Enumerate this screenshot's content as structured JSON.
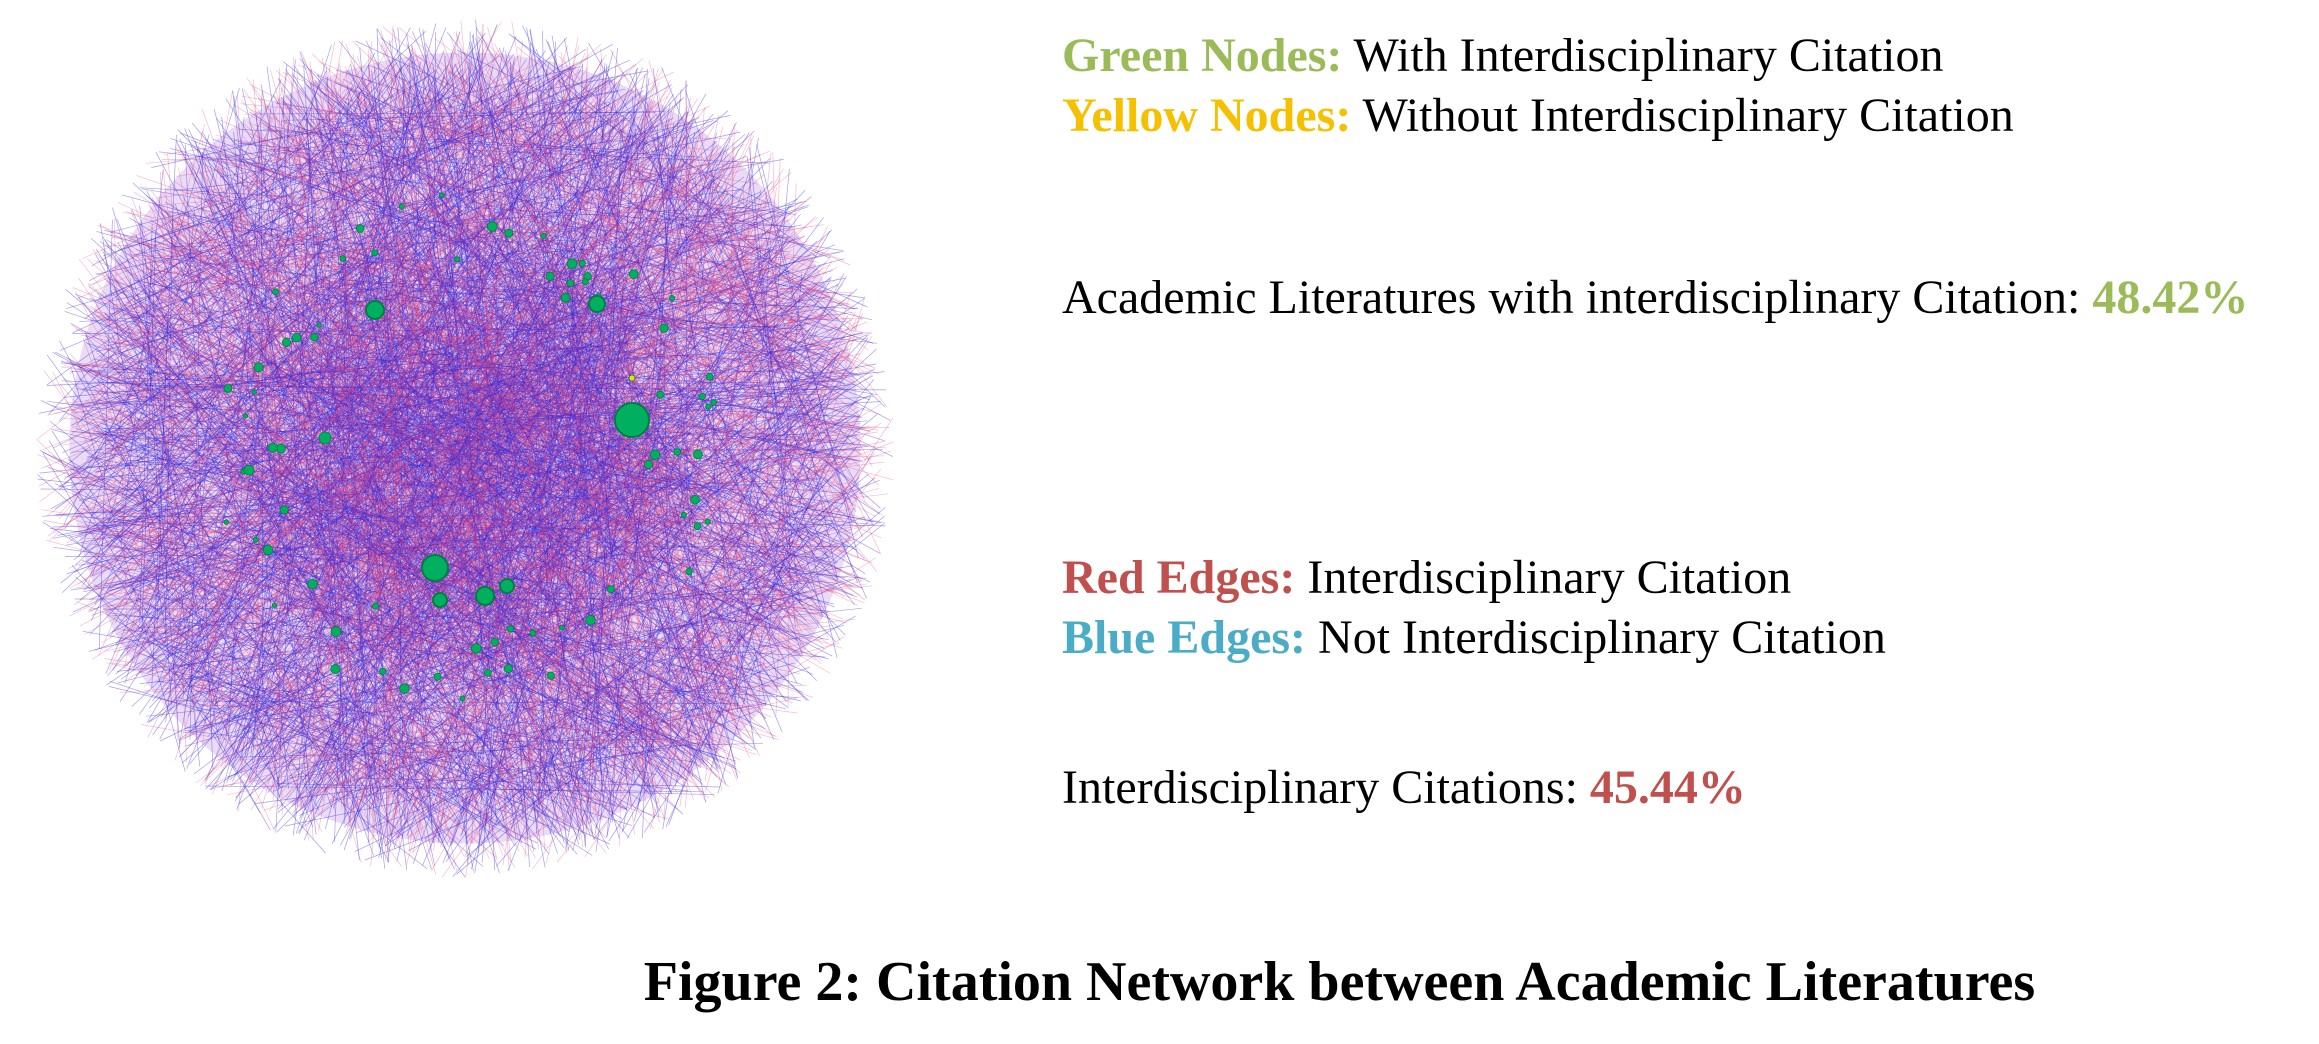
{
  "legend": {
    "green_nodes": {
      "key": "Green Nodes:",
      "text": "With Interdisciplinary Citation",
      "color": "#9bbb59"
    },
    "yellow_nodes": {
      "key": "Yellow Nodes:",
      "text": "Without Interdisciplinary Citation",
      "color": "#f5c000"
    },
    "red_edges": {
      "key": "Red Edges:",
      "text": "Interdisciplinary Citation",
      "color": "#c0504d"
    },
    "blue_edges": {
      "key": "Blue Edges:",
      "text": "Not Interdisciplinary Citation",
      "color": "#4bacc6"
    }
  },
  "stats": {
    "literatures": {
      "label": "Academic Literatures with interdisciplinary Citation:",
      "value": "48.42%",
      "color": "#9bbb59"
    },
    "citations": {
      "label": "Interdisciplinary Citations:",
      "value": "45.44%",
      "color": "#c0504d"
    }
  },
  "caption": "Figure 2: Citation Network between Academic Literatures",
  "network": {
    "edge_colors": {
      "red": "#e0407a",
      "blue": "#3a2ad8"
    },
    "node_fill": "#00b060",
    "node_stroke": "#008040",
    "yellow_node_fill": "#f0e000"
  }
}
